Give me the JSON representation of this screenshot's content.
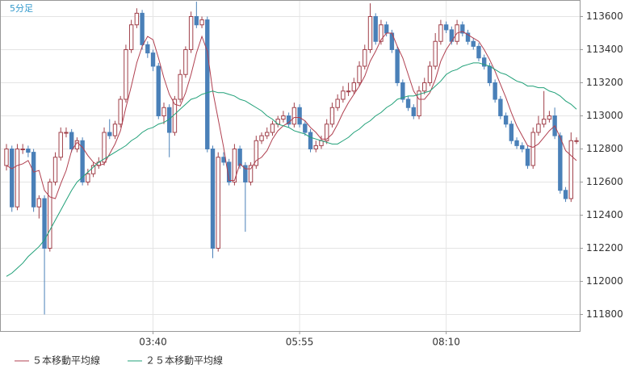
{
  "chart_data": {
    "type": "candlestick",
    "label": "5分足",
    "categories": [
      null,
      null,
      null,
      null,
      null,
      null,
      null,
      null,
      null,
      null,
      null,
      null,
      null,
      null,
      null,
      null,
      null,
      null,
      null,
      null,
      null,
      null,
      null,
      null,
      null,
      null,
      null,
      "03:40",
      null,
      null,
      null,
      null,
      null,
      null,
      null,
      null,
      null,
      null,
      null,
      null,
      null,
      null,
      null,
      null,
      null,
      null,
      null,
      null,
      null,
      null,
      null,
      null,
      null,
      null,
      "05:55",
      null,
      null,
      null,
      null,
      null,
      null,
      null,
      null,
      null,
      null,
      null,
      null,
      null,
      null,
      null,
      null,
      null,
      null,
      null,
      null,
      null,
      null,
      null,
      null,
      null,
      null,
      "08:10",
      null,
      null,
      null,
      null,
      null,
      null,
      null,
      null,
      null,
      null,
      null,
      null,
      null,
      null,
      null,
      null,
      null,
      null,
      null,
      null,
      null,
      null,
      null,
      null
    ],
    "open": [
      112700,
      112800,
      112450,
      112800,
      112800,
      112780,
      112450,
      112500,
      112200,
      112600,
      112750,
      112900,
      112900,
      112800,
      112850,
      112600,
      112650,
      112700,
      112720,
      112900,
      112880,
      112950,
      113100,
      113400,
      113550,
      113620,
      113430,
      113380,
      113300,
      113000,
      113050,
      112900,
      113100,
      113250,
      113400,
      113600,
      113550,
      113580,
      112800,
      112200,
      112750,
      112720,
      112600,
      112800,
      112700,
      112600,
      112700,
      112850,
      112880,
      112900,
      112950,
      112980,
      113000,
      112950,
      113050,
      112950,
      112900,
      112800,
      112820,
      112850,
      112950,
      113050,
      113100,
      113150,
      113150,
      113200,
      113300,
      113400,
      113600,
      113450,
      113550,
      113500,
      113400,
      113200,
      113100,
      113050,
      113000,
      113150,
      113200,
      113300,
      113450,
      113550,
      113520,
      113450,
      113550,
      113500,
      113450,
      113420,
      113350,
      113300,
      113200,
      113100,
      113000,
      112950,
      112850,
      112820,
      112800,
      112700,
      112900,
      112950,
      112980,
      113000,
      112880,
      112550,
      112500,
      112850
    ],
    "high": [
      112830,
      112820,
      112830,
      112830,
      112820,
      112800,
      112520,
      112520,
      112620,
      112780,
      112930,
      112930,
      112920,
      112870,
      112870,
      112680,
      112720,
      112750,
      112930,
      112980,
      112970,
      113120,
      113430,
      113580,
      113650,
      113640,
      113450,
      113400,
      113320,
      113080,
      113070,
      113120,
      113280,
      113420,
      113630,
      113690,
      113600,
      113600,
      112820,
      112780,
      112780,
      112740,
      112830,
      112820,
      112720,
      112720,
      112880,
      112900,
      112930,
      112970,
      113000,
      113030,
      113020,
      113080,
      113070,
      112970,
      112920,
      112850,
      112880,
      112980,
      113080,
      113130,
      113180,
      113200,
      113230,
      113330,
      113430,
      113680,
      113620,
      113580,
      113570,
      113520,
      113420,
      113220,
      113120,
      113070,
      113180,
      113230,
      113330,
      113500,
      113580,
      113570,
      113540,
      113580,
      113570,
      113520,
      113470,
      113440,
      113370,
      113320,
      113220,
      113120,
      113020,
      112970,
      112870,
      112840,
      112820,
      112930,
      113000,
      113150,
      113030,
      113050,
      112900,
      112570,
      112900,
      112870
    ],
    "low": [
      112670,
      112420,
      112430,
      112770,
      112750,
      112420,
      112380,
      111800,
      112180,
      112580,
      112730,
      112870,
      112780,
      112780,
      112580,
      112580,
      112630,
      112680,
      112700,
      112860,
      112860,
      112930,
      113080,
      113380,
      113530,
      113400,
      113350,
      113270,
      112980,
      112950,
      112750,
      112880,
      113080,
      113230,
      113380,
      113530,
      113530,
      112780,
      112140,
      112180,
      112700,
      112580,
      112580,
      112680,
      112300,
      112580,
      112680,
      112830,
      112860,
      112880,
      112930,
      112960,
      112930,
      112930,
      112930,
      112880,
      112780,
      112780,
      112800,
      112830,
      112930,
      113030,
      113080,
      113120,
      113130,
      113180,
      113280,
      113380,
      113430,
      113430,
      113480,
      113380,
      113180,
      113080,
      113030,
      112980,
      112980,
      113130,
      113180,
      113280,
      113430,
      113500,
      113430,
      113430,
      113480,
      113430,
      113400,
      113330,
      113280,
      113180,
      113080,
      112980,
      112930,
      112830,
      112800,
      112780,
      112680,
      112680,
      112880,
      112930,
      112960,
      112860,
      112530,
      112480,
      112480,
      112830
    ],
    "close": [
      112800,
      112450,
      112800,
      112800,
      112780,
      112450,
      112500,
      112200,
      112600,
      112750,
      112900,
      112900,
      112800,
      112850,
      112600,
      112650,
      112700,
      112720,
      112900,
      112880,
      112950,
      113100,
      113400,
      113550,
      113620,
      113430,
      113380,
      113300,
      113000,
      113050,
      112900,
      113100,
      113250,
      113400,
      113600,
      113550,
      113580,
      112800,
      112200,
      112750,
      112720,
      112600,
      112800,
      112700,
      112600,
      112700,
      112850,
      112880,
      112900,
      112950,
      112980,
      113000,
      112950,
      113050,
      112950,
      112900,
      112800,
      112820,
      112850,
      112950,
      113050,
      113100,
      113150,
      113150,
      113200,
      113300,
      113400,
      113600,
      113450,
      113550,
      113500,
      113400,
      113200,
      113100,
      113050,
      113000,
      113150,
      113200,
      113300,
      113450,
      113550,
      113520,
      113450,
      113550,
      113500,
      113450,
      113420,
      113350,
      113300,
      113200,
      113100,
      113000,
      112950,
      112850,
      112820,
      112800,
      112700,
      112900,
      112950,
      112980,
      113000,
      112880,
      112550,
      112500,
      112850,
      112850
    ],
    "up_color": "#a0404a",
    "down_color": "#4a80b8",
    "series": [
      {
        "name": "５本移動平均線",
        "color": "#b04050",
        "values": [
          112700,
          112680,
          112700,
          112710,
          112730,
          112660,
          112670,
          112550,
          112510,
          112500,
          112590,
          112670,
          112790,
          112840,
          112810,
          112760,
          112720,
          112700,
          112710,
          112770,
          112830,
          112910,
          113050,
          113180,
          113320,
          113420,
          113480,
          113460,
          113350,
          113230,
          113130,
          113070,
          113060,
          113140,
          113250,
          113380,
          113480,
          113390,
          113150,
          112980,
          112810,
          112610,
          112610,
          112710,
          112680,
          112680,
          112730,
          112750,
          112790,
          112860,
          112910,
          112940,
          112960,
          112990,
          112990,
          112970,
          112930,
          112900,
          112860,
          112860,
          112890,
          112950,
          113020,
          113080,
          113130,
          113180,
          113240,
          113330,
          113390,
          113460,
          113500,
          113500,
          113420,
          113350,
          113250,
          113150,
          113100,
          113100,
          113140,
          113220,
          113330,
          113400,
          113450,
          113500,
          113510,
          113490,
          113470,
          113450,
          113400,
          113340,
          113270,
          113190,
          113110,
          113020,
          112940,
          112880,
          112820,
          112810,
          112830,
          112870,
          112910,
          112940,
          112870,
          112790,
          112760,
          112730
        ]
      },
      {
        "name": "２５本移動平均線",
        "color": "#20a078",
        "values": [
          112030,
          112050,
          112080,
          112110,
          112150,
          112180,
          112210,
          112250,
          112310,
          112370,
          112430,
          112490,
          112550,
          112600,
          112630,
          112660,
          112690,
          112720,
          112740,
          112760,
          112780,
          112800,
          112820,
          112850,
          112870,
          112900,
          112920,
          112930,
          112950,
          112960,
          112980,
          113010,
          113040,
          113070,
          113100,
          113110,
          113130,
          113140,
          113150,
          113140,
          113140,
          113130,
          113120,
          113100,
          113090,
          113070,
          113050,
          113030,
          113000,
          112980,
          112950,
          112940,
          112930,
          112910,
          112900,
          112890,
          112870,
          112860,
          112850,
          112840,
          112830,
          112830,
          112850,
          112870,
          112900,
          112920,
          112950,
          112970,
          113000,
          113020,
          113050,
          113070,
          113100,
          113110,
          113120,
          113120,
          113130,
          113140,
          113150,
          113180,
          113210,
          113250,
          113270,
          113280,
          113300,
          113310,
          113320,
          113320,
          113310,
          113300,
          113280,
          113260,
          113250,
          113230,
          113210,
          113200,
          113180,
          113180,
          113170,
          113170,
          113150,
          113140,
          113120,
          113090,
          113070,
          113040
        ]
      }
    ],
    "ylim": [
      111700,
      113700
    ],
    "yticks": [
      111800,
      112000,
      112200,
      112400,
      112600,
      112800,
      113000,
      113200,
      113400,
      113600
    ],
    "grid": true
  }
}
